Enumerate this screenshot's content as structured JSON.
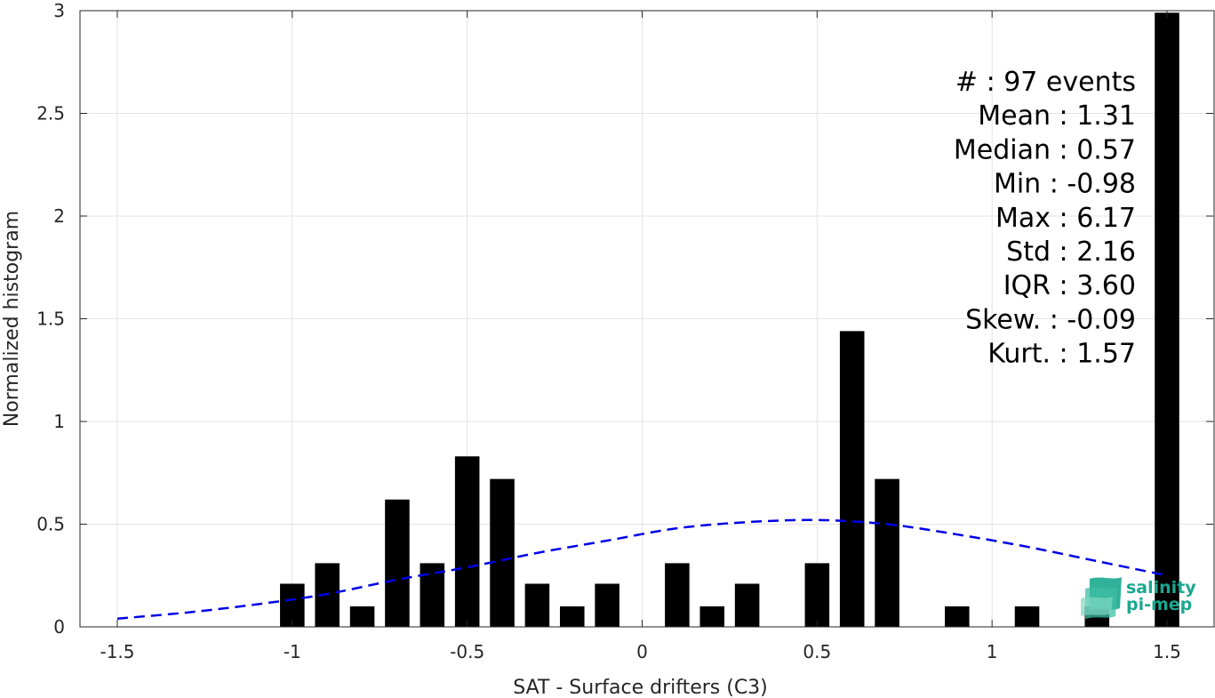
{
  "chart_data": {
    "type": "bar",
    "xlabel": "SAT - Surface drifters (C3)",
    "ylabel": "Normalized histogram",
    "xlim": [
      -1.5,
      1.5
    ],
    "ylim": [
      0,
      3
    ],
    "xticks": [
      -1.5,
      -1,
      -0.5,
      0,
      0.5,
      1,
      1.5
    ],
    "xtick_labels": [
      "-1.5",
      "-1",
      "-0.5",
      "0",
      "0.5",
      "1",
      "1.5"
    ],
    "yticks": [
      0,
      0.5,
      1,
      1.5,
      2,
      2.5,
      3
    ],
    "ytick_labels": [
      "0",
      "0.5",
      "1",
      "1.5",
      "2",
      "2.5",
      "3"
    ],
    "grid": true,
    "bar_width": 0.07,
    "bar_color": "#000000",
    "bars": [
      {
        "x": -1.0,
        "y": 0.21
      },
      {
        "x": -0.9,
        "y": 0.31
      },
      {
        "x": -0.8,
        "y": 0.1
      },
      {
        "x": -0.7,
        "y": 0.62
      },
      {
        "x": -0.6,
        "y": 0.31
      },
      {
        "x": -0.5,
        "y": 0.83
      },
      {
        "x": -0.4,
        "y": 0.72
      },
      {
        "x": -0.3,
        "y": 0.21
      },
      {
        "x": -0.2,
        "y": 0.1
      },
      {
        "x": -0.1,
        "y": 0.21
      },
      {
        "x": 0.1,
        "y": 0.31
      },
      {
        "x": 0.2,
        "y": 0.1
      },
      {
        "x": 0.3,
        "y": 0.21
      },
      {
        "x": 0.5,
        "y": 0.31
      },
      {
        "x": 0.6,
        "y": 1.44
      },
      {
        "x": 0.7,
        "y": 0.72
      },
      {
        "x": 0.9,
        "y": 0.1
      },
      {
        "x": 1.1,
        "y": 0.1
      },
      {
        "x": 1.3,
        "y": 0.1
      },
      {
        "x": 1.5,
        "y": 2.99
      }
    ],
    "fit_curve": {
      "style": "dashed",
      "color": "#0000e6",
      "points": [
        [
          -1.5,
          0.04
        ],
        [
          -1.3,
          0.07
        ],
        [
          -1.1,
          0.11
        ],
        [
          -0.9,
          0.16
        ],
        [
          -0.7,
          0.23
        ],
        [
          -0.5,
          0.29
        ],
        [
          -0.3,
          0.36
        ],
        [
          -0.1,
          0.42
        ],
        [
          0.1,
          0.48
        ],
        [
          0.3,
          0.51
        ],
        [
          0.5,
          0.52
        ],
        [
          0.7,
          0.5
        ],
        [
          0.9,
          0.45
        ],
        [
          1.1,
          0.39
        ],
        [
          1.3,
          0.32
        ],
        [
          1.5,
          0.25
        ]
      ]
    },
    "annotations": [
      "#  : 97 events",
      "Mean : 1.31",
      "Median : 0.57",
      "Min : -0.98",
      "Max : 6.17",
      "Std : 2.16",
      "IQR : 3.60",
      "Skew. : -0.09",
      "Kurt. : 1.57"
    ]
  },
  "logo": {
    "line1": "salinity",
    "line2": "pi-mep",
    "color": "#1aa88f"
  }
}
